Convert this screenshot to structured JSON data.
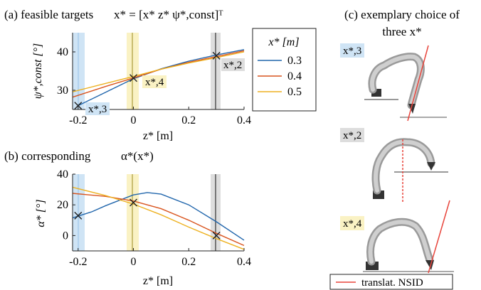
{
  "panel_a": {
    "label": "(a) feasible targets",
    "formula": "x* = [x*  z*  ψ*,const]ᵀ"
  },
  "panel_b": {
    "label": "(b) corresponding",
    "formula": "α*(x*)"
  },
  "panel_c": {
    "title_line1": "(c) exemplary choice of",
    "title_line2": "three x*",
    "robot_labels": [
      "x*,3",
      "x*,2",
      "x*,4"
    ],
    "legend_label": "translat. NSID",
    "line_color": "#e8453c"
  },
  "legend": {
    "title": "x* [m]",
    "entries": [
      "0.3",
      "0.4",
      "0.5"
    ]
  },
  "target_labels": {
    "t3": "x*,3",
    "t4": "x*,4",
    "t2": "x*,2"
  },
  "colors": {
    "series": [
      "#2166ac",
      "#d9541e",
      "#edb120"
    ],
    "band_t3": "#cfe4f5",
    "band_t4": "#faf2c4",
    "band_t2": "#dddddd",
    "vline_t3": "#9ec7e8",
    "vline_t4": "#a89a3a",
    "vline_t2": "#333333"
  },
  "chart_data": [
    {
      "type": "line",
      "title": "(a) feasible targets",
      "xlabel": "z* [m]",
      "ylabel": "ψ*,const [°]",
      "xlim": [
        -0.22,
        0.4
      ],
      "ylim": [
        25,
        45
      ],
      "xticks": [
        "-0.2",
        "0",
        "0.2",
        "0.4"
      ],
      "yticks": [
        "30",
        "40"
      ],
      "series": [
        {
          "name": "0.3",
          "x": [
            -0.2,
            -0.1,
            0.0,
            0.1,
            0.2,
            0.3,
            0.4
          ],
          "y": [
            26.0,
            29.5,
            33.0,
            35.6,
            37.6,
            39.2,
            40.6
          ]
        },
        {
          "name": "0.4",
          "x": [
            -0.22,
            -0.1,
            0.0,
            0.1,
            0.2,
            0.3,
            0.4
          ],
          "y": [
            28.2,
            31.0,
            33.2,
            35.5,
            37.3,
            38.8,
            40.3
          ]
        },
        {
          "name": "0.5",
          "x": [
            -0.22,
            -0.1,
            0.0,
            0.1,
            0.2,
            0.3,
            0.4
          ],
          "y": [
            29.6,
            31.8,
            33.6,
            35.5,
            37.1,
            38.5,
            40.0
          ]
        }
      ],
      "markers": [
        {
          "label": "x*,3",
          "x": -0.2,
          "y": 26.0
        },
        {
          "label": "x*,4",
          "x": 0.0,
          "y": 33.2
        },
        {
          "label": "x*,2",
          "x": 0.3,
          "y": 39.0
        }
      ]
    },
    {
      "type": "line",
      "title": "(b) corresponding α*(x*)",
      "xlabel": "z* [m]",
      "ylabel": "α* [°]",
      "xlim": [
        -0.22,
        0.4
      ],
      "ylim": [
        -10,
        40
      ],
      "xticks": [
        "-0.2",
        "0",
        "0.2",
        "0.4"
      ],
      "yticks": [
        "0",
        "20",
        "40"
      ],
      "series": [
        {
          "name": "0.3",
          "x": [
            -0.22,
            -0.15,
            -0.1,
            -0.05,
            0.0,
            0.05,
            0.1,
            0.2,
            0.3,
            0.4
          ],
          "y": [
            11.5,
            15.5,
            19.5,
            23.0,
            26.5,
            28.0,
            27.0,
            20.0,
            9.0,
            -3.0
          ]
        },
        {
          "name": "0.4",
          "x": [
            -0.22,
            -0.1,
            0.0,
            0.1,
            0.2,
            0.3,
            0.4
          ],
          "y": [
            27.5,
            25.5,
            22.5,
            17.5,
            10.0,
            1.5,
            -6.5
          ]
        },
        {
          "name": "0.5",
          "x": [
            -0.22,
            -0.1,
            0.0,
            0.1,
            0.2,
            0.3,
            0.4
          ],
          "y": [
            31.5,
            26.0,
            20.5,
            13.5,
            5.5,
            -2.0,
            -9.0
          ]
        }
      ],
      "markers": [
        {
          "label": "x*,3",
          "x": -0.2,
          "y": 13.0
        },
        {
          "label": "x*,4",
          "x": 0.0,
          "y": 21.5
        },
        {
          "label": "x*,2",
          "x": 0.3,
          "y": 0.0
        }
      ]
    }
  ]
}
